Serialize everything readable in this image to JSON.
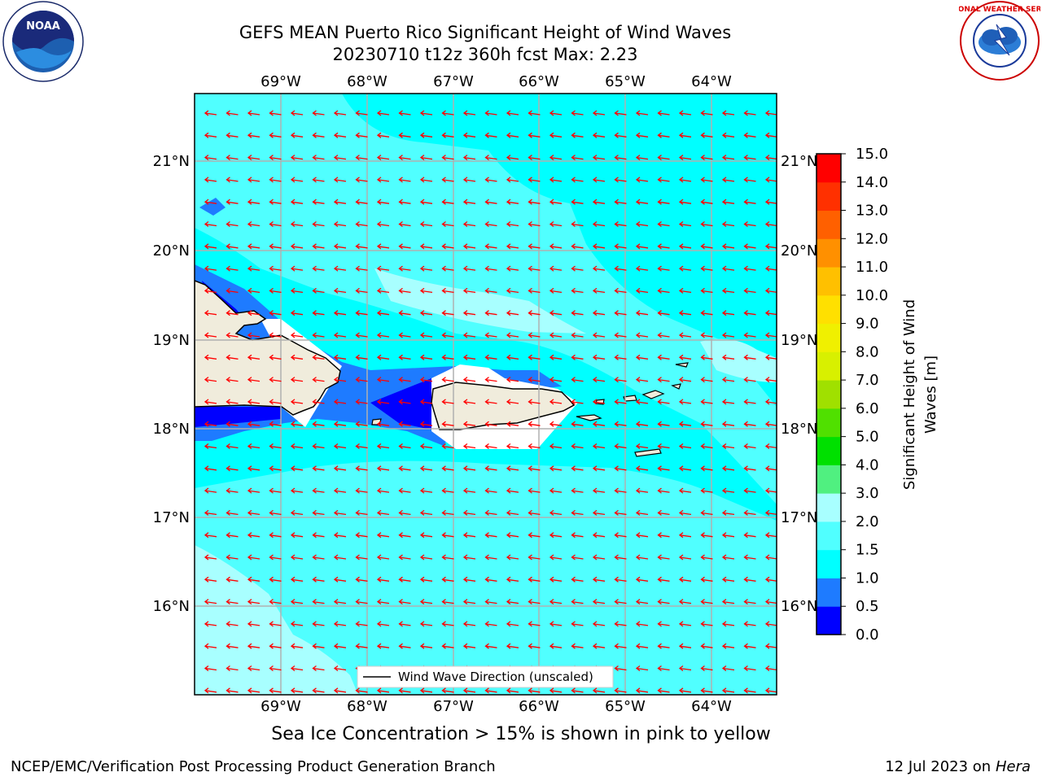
{
  "title_line1": "GEFS MEAN Puerto Rico Significant Height of Wind Waves",
  "title_line2": "20230710 t12z 360h fcst   Max: 2.23",
  "map": {
    "lon_labels": [
      "69°W",
      "68°W",
      "67°W",
      "66°W",
      "65°W",
      "64°W"
    ],
    "lat_labels": [
      "21°N",
      "20°N",
      "19°N",
      "18°N",
      "17°N",
      "16°N"
    ],
    "legend_label": "Wind Wave Direction (unscaled)",
    "arrow_color": "#ff0000",
    "land_color": "#f0ecdc",
    "ocean_colors": {
      "0.5-1.0": "#1e90ff",
      "1.0-1.5": "#00ffff",
      "1.5-2.0": "#50ffff",
      "2.0-3.0": "#a8ffff",
      "0.0-0.5": "#0000ff"
    }
  },
  "colorbar": {
    "label_line1": "Significant Height of Wind",
    "label_line2": "Waves [m]",
    "ticks": [
      "0.0",
      "0.5",
      "1.0",
      "1.5",
      "2.0",
      "3.0",
      "4.0",
      "5.0",
      "6.0",
      "7.0",
      "8.0",
      "9.0",
      "10.0",
      "11.0",
      "12.0",
      "13.0",
      "14.0",
      "15.0"
    ],
    "colors": [
      "#0000ff",
      "#1e7bff",
      "#00ffff",
      "#50ffff",
      "#a8ffff",
      "#50f080",
      "#00e000",
      "#50e000",
      "#a0e000",
      "#d8f000",
      "#f0f000",
      "#ffe000",
      "#ffc000",
      "#ff9000",
      "#ff6000",
      "#ff3000",
      "#ff0000"
    ]
  },
  "ice_note": "Sea Ice Concentration > 15% is shown in pink to yellow",
  "footer_left": "NCEP/EMC/Verification Post Processing Product Generation Branch",
  "footer_right_prefix": "12 Jul 2023 on ",
  "footer_right_italic": "Hera",
  "logos": {
    "noaa_text": "NOAA",
    "nws_text": "NATIONAL WEATHER SERVICE"
  }
}
